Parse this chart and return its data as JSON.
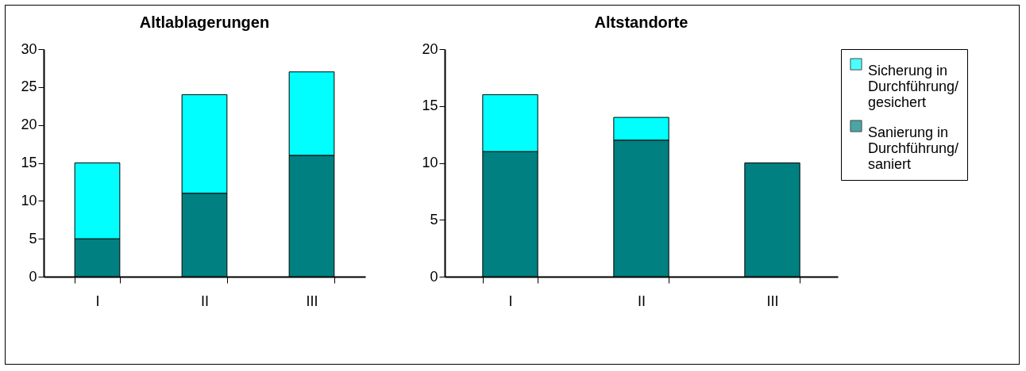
{
  "chart_data": [
    {
      "type": "bar",
      "title": "Altlablagerungen",
      "categories": [
        "I",
        "II",
        "III"
      ],
      "stacked": true,
      "ylim": [
        0,
        30
      ],
      "yticks": [
        0,
        5,
        10,
        15,
        20,
        25,
        30
      ],
      "grid": false,
      "legend": "top right",
      "series": [
        {
          "name": "Sanierung in Durchführung/ saniert",
          "color": "#008080",
          "values": [
            5,
            11,
            16
          ]
        },
        {
          "name": "Sicherung in Durchführung/ gesichert",
          "color": "#00ffff",
          "values": [
            10,
            13,
            11
          ]
        }
      ]
    },
    {
      "type": "bar",
      "title": "Altstandorte",
      "categories": [
        "I",
        "II",
        "III"
      ],
      "stacked": true,
      "ylim": [
        0,
        20
      ],
      "yticks": [
        0,
        5,
        10,
        15,
        20
      ],
      "grid": false,
      "legend": "top right",
      "series": [
        {
          "name": "Sanierung in Durchführung/ saniert",
          "color": "#008080",
          "values": [
            11,
            12,
            10
          ]
        },
        {
          "name": "Sicherung in Durchführung/ gesichert",
          "color": "#00ffff",
          "values": [
            5,
            2,
            0
          ]
        }
      ]
    }
  ]
}
